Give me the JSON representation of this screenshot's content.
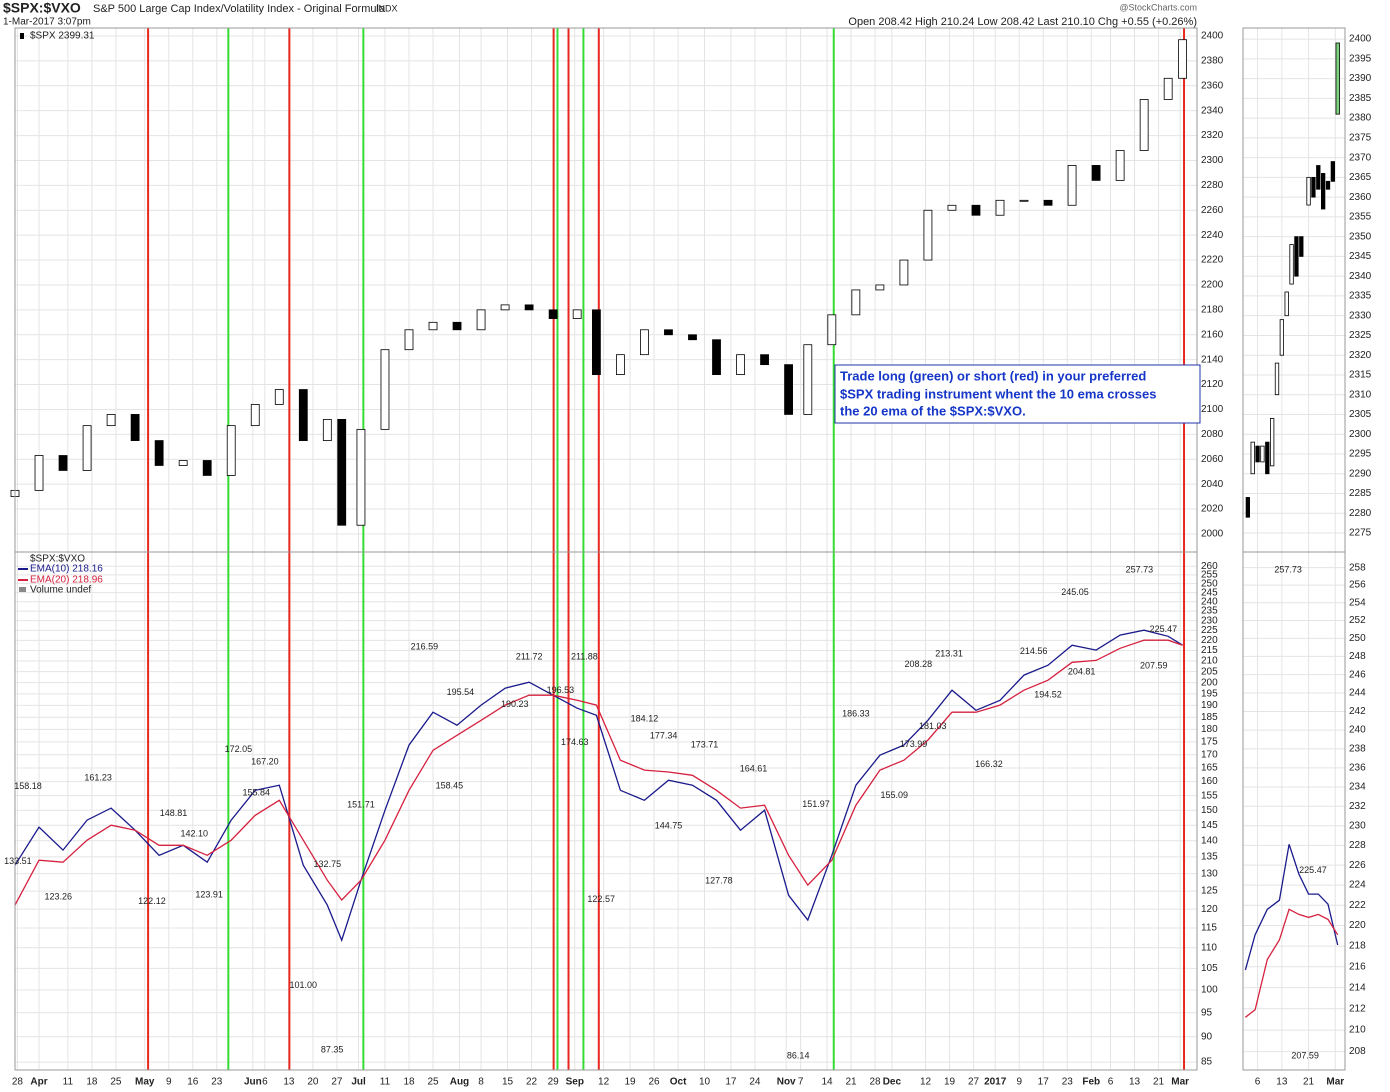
{
  "header": {
    "symbol": "$SPX:$VXO",
    "description": "S&P 500 Large Cap Index/Volatility Index - Original Formula",
    "exchange": "INDX",
    "date": "1-Mar-2017 3:07pm",
    "quote": "Open 208.42 High 210.24 Low 208.42 Last 210.10 Chg +0.55 (+0.26%)",
    "brand": "@StockCharts.com"
  },
  "chart_data": [
    {
      "type": "candlestick",
      "series_name": "$SPX 2399.31",
      "x": [
        0,
        5,
        10,
        15,
        20,
        25,
        30,
        35,
        40,
        45,
        50,
        55,
        60,
        65,
        68,
        72,
        77,
        82,
        87,
        92,
        97,
        102,
        107,
        112,
        117,
        121,
        126,
        131,
        136,
        141,
        146,
        151,
        156,
        161,
        165,
        170,
        175,
        180,
        185,
        190,
        195,
        200,
        205,
        210,
        215,
        220,
        225,
        230,
        235,
        240,
        243
      ],
      "open": [
        2030,
        2035,
        2063,
        2051,
        2087,
        2096,
        2075,
        2055,
        2059,
        2047,
        2087,
        2104,
        2116,
        2075,
        2092,
        2007,
        2084,
        2148,
        2164,
        2170,
        2164,
        2180,
        2184,
        2180,
        2173,
        2180,
        2128,
        2144,
        2164,
        2160,
        2156,
        2128,
        2144,
        2136,
        2096,
        2152,
        2176,
        2196,
        2200,
        2220,
        2260,
        2264,
        2256,
        2268,
        2268,
        2264,
        2296,
        2284,
        2308,
        2349,
        2366
      ],
      "close": [
        2035,
        2063,
        2051,
        2087,
        2096,
        2075,
        2055,
        2059,
        2047,
        2087,
        2104,
        2116,
        2075,
        2092,
        2007,
        2084,
        2148,
        2164,
        2170,
        2164,
        2180,
        2184,
        2180,
        2173,
        2180,
        2128,
        2144,
        2164,
        2160,
        2156,
        2128,
        2144,
        2136,
        2096,
        2152,
        2176,
        2196,
        2200,
        2220,
        2260,
        2264,
        2256,
        2268,
        2268,
        2264,
        2296,
        2284,
        2308,
        2349,
        2366,
        2397
      ],
      "up_color": "#ffffff",
      "down_color": "#000000",
      "xlim": [
        0,
        246
      ],
      "ylim": [
        1985.5,
        2406.4
      ],
      "yticks": [
        2000,
        2020,
        2040,
        2060,
        2080,
        2100,
        2120,
        2140,
        2160,
        2180,
        2200,
        2220,
        2240,
        2260,
        2280,
        2300,
        2320,
        2340,
        2360,
        2380,
        2400
      ],
      "signal_lines": {
        "x": [
          27.7,
          44.4,
          57.1,
          72.5,
          112.1,
          112.9,
          115.2,
          118.3,
          121.5,
          170.4,
          243.3
        ],
        "colors": [
          "#e8281e",
          "#33dd33",
          "#e8281e",
          "#33dd33",
          "#e8281e",
          "#33dd33",
          "#e8281e",
          "#33dd33",
          "#e8281e",
          "#33dd33",
          "#e8281e"
        ]
      },
      "callout": [
        "Trade long (green) or short (red) in your preferred",
        "$SPX trading instrument whent the 10 ema crosses",
        "the 20 ema of the $SPX:$VXO."
      ]
    },
    {
      "type": "line",
      "ratio_name": "$SPX:$VXO",
      "volume_label": "Volume undef",
      "x": [
        0,
        5,
        10,
        15,
        20,
        25,
        30,
        35,
        40,
        45,
        50,
        55,
        60,
        65,
        68,
        72,
        77,
        82,
        87,
        92,
        97,
        102,
        107,
        112,
        117,
        121,
        126,
        131,
        136,
        141,
        146,
        151,
        156,
        161,
        165,
        170,
        175,
        180,
        185,
        190,
        195,
        200,
        205,
        210,
        215,
        220,
        225,
        230,
        235,
        240,
        243
      ],
      "series": [
        {
          "name": "EMA(10) 218.16",
          "color": "#1a1a8c",
          "values": [
            132.5,
            144.4,
            137.1,
            146.7,
            150.7,
            143.4,
            135.5,
            138.6,
            133.4,
            146.7,
            156.9,
            158.7,
            132.5,
            121.1,
            111.9,
            128.1,
            150.0,
            173.7,
            187.1,
            181.7,
            190.1,
            197.5,
            200.2,
            194.4,
            188.8,
            185.8,
            156.9,
            153.4,
            160.5,
            158.7,
            153.4,
            143.4,
            150.0,
            123.8,
            117.1,
            135.5,
            158.7,
            169.8,
            173.7,
            183.7,
            196.6,
            187.9,
            192.2,
            203.4,
            208.0,
            217.6,
            215.2,
            222.6,
            225.1,
            222.0,
            217.6
          ]
        },
        {
          "name": "EMA(20) 218.96",
          "color": "#d6213f",
          "values": [
            121.1,
            134.0,
            133.4,
            140.2,
            145.0,
            143.4,
            138.6,
            138.6,
            135.5,
            140.2,
            148.3,
            153.4,
            140.2,
            128.1,
            122.5,
            128.1,
            140.2,
            156.9,
            171.7,
            177.6,
            183.7,
            190.1,
            194.4,
            194.4,
            192.2,
            190.1,
            167.9,
            164.2,
            163.5,
            162.3,
            156.9,
            150.7,
            151.7,
            135.5,
            126.7,
            134.0,
            151.7,
            164.2,
            167.9,
            175.7,
            187.1,
            187.1,
            190.1,
            196.6,
            201.1,
            209.4,
            210.3,
            216.1,
            220.1,
            220.1,
            217.6
          ]
        }
      ],
      "log_scale": true,
      "xlim": [
        0,
        246
      ],
      "ylim": [
        83.5,
        268.5
      ],
      "yticks": [
        85,
        90,
        95,
        100,
        105,
        110,
        115,
        120,
        125,
        130,
        135,
        140,
        145,
        150,
        155,
        160,
        165,
        170,
        175,
        180,
        185,
        190,
        195,
        200,
        205,
        210,
        215,
        220,
        225,
        230,
        235,
        240,
        245,
        250,
        255,
        260
      ],
      "xticks": [
        {
          "value": 0.5,
          "label": "28"
        },
        {
          "value": 5,
          "label": "Apr"
        },
        {
          "value": 11,
          "label": "11"
        },
        {
          "value": 16,
          "label": "18"
        },
        {
          "value": 21,
          "label": "25"
        },
        {
          "value": 27,
          "label": "May"
        },
        {
          "value": 32,
          "label": "9"
        },
        {
          "value": 37,
          "label": "16"
        },
        {
          "value": 42,
          "label": "23"
        },
        {
          "value": 49.5,
          "label": "Jun"
        },
        {
          "value": 52,
          "label": "6"
        },
        {
          "value": 57,
          "label": "13"
        },
        {
          "value": 62,
          "label": "20"
        },
        {
          "value": 67,
          "label": "27"
        },
        {
          "value": 71.5,
          "label": "Jul"
        },
        {
          "value": 77,
          "label": "11"
        },
        {
          "value": 82,
          "label": "18"
        },
        {
          "value": 87,
          "label": "25"
        },
        {
          "value": 92.5,
          "label": "Aug"
        },
        {
          "value": 97,
          "label": "8"
        },
        {
          "value": 102.5,
          "label": "15"
        },
        {
          "value": 107.5,
          "label": "22"
        },
        {
          "value": 112,
          "label": "29"
        },
        {
          "value": 116.5,
          "label": "Sep"
        },
        {
          "value": 122.5,
          "label": "12"
        },
        {
          "value": 128,
          "label": "19"
        },
        {
          "value": 133,
          "label": "26"
        },
        {
          "value": 138,
          "label": "Oct"
        },
        {
          "value": 143.5,
          "label": "10"
        },
        {
          "value": 149,
          "label": "17"
        },
        {
          "value": 154,
          "label": "24"
        },
        {
          "value": 160.5,
          "label": "Nov"
        },
        {
          "value": 163.5,
          "label": "7"
        },
        {
          "value": 169,
          "label": "14"
        },
        {
          "value": 174,
          "label": "21"
        },
        {
          "value": 179,
          "label": "28"
        },
        {
          "value": 182.5,
          "label": "Dec"
        },
        {
          "value": 189.5,
          "label": "12"
        },
        {
          "value": 194.5,
          "label": "19"
        },
        {
          "value": 199.5,
          "label": "27"
        },
        {
          "value": 204,
          "label": "2017"
        },
        {
          "value": 209,
          "label": "9"
        },
        {
          "value": 214,
          "label": "17"
        },
        {
          "value": 219,
          "label": "23"
        },
        {
          "value": 224,
          "label": "Feb"
        },
        {
          "value": 228,
          "label": "6"
        },
        {
          "value": 233,
          "label": "13"
        },
        {
          "value": 238,
          "label": "21"
        },
        {
          "value": 242.5,
          "label": "Mar"
        }
      ],
      "annotations": {
        "x": [
          2.7,
          0.6,
          9,
          17.3,
          33,
          37.3,
          28.5,
          40.4,
          46.5,
          50.2,
          52,
          65,
          60,
          66,
          72,
          85.2,
          92.7,
          90.4,
          107,
          104,
          113.5,
          118.5,
          116.5,
          122,
          131,
          135,
          136,
          143.5,
          146.5,
          153.7,
          166.7,
          163,
          175,
          183,
          187,
          191,
          188,
          194.4,
          202.7,
          212,
          215,
          220.6,
          222,
          234,
          239,
          237
        ],
        "values": [
          158.18,
          133.51,
          123.26,
          161.23,
          148.81,
          142.1,
          122.12,
          123.91,
          172.05,
          155.84,
          167.2,
          132.75,
          101,
          87.35,
          151.71,
          216.59,
          195.54,
          158.45,
          211.72,
          190.23,
          196.53,
          211.88,
          174.63,
          122.57,
          184.12,
          177.34,
          144.75,
          173.71,
          127.78,
          164.61,
          151.97,
          86.14,
          186.33,
          155.09,
          173.99,
          181.03,
          208.28,
          213.31,
          166.32,
          214.56,
          194.52,
          245.05,
          204.81,
          257.73,
          225.47,
          207.59
        ],
        "value_labels": [
          "158.18",
          "133.51",
          "123.26",
          "161.23",
          "148.81",
          "142.10",
          "122.12",
          "123.91",
          "172.05",
          "155.84",
          "167.20",
          "132.75",
          "101.00",
          "87.35",
          "151.71",
          "216.59",
          "195.54",
          "158.45",
          "211.72",
          "190.23",
          "196.53",
          "211.88",
          "174.63",
          "122.57",
          "184.12",
          "177.34",
          "144.75",
          "173.71",
          "127.78",
          "164.61",
          "151.97",
          "86.14",
          "186.33",
          "155.09",
          "173.99",
          "181.03",
          "208.28",
          "213.31",
          "166.32",
          "214.56",
          "194.52",
          "245.05",
          "204.81",
          "257.73",
          "225.47",
          "207.59"
        ]
      }
    },
    {
      "type": "candlestick",
      "x": [
        1,
        2,
        3,
        4,
        5,
        6,
        7,
        8,
        9,
        10,
        11,
        12,
        13.5,
        14.5,
        15.5,
        16.5,
        17.5,
        18.5,
        19.5
      ],
      "open": [
        2284,
        2290,
        2297,
        2293,
        2298,
        2292,
        2310,
        2320,
        2330,
        2338,
        2350,
        2350,
        2358,
        2365,
        2368,
        2366,
        2364,
        2369,
        2381
      ],
      "close": [
        2279,
        2298,
        2293,
        2297,
        2290,
        2304,
        2318,
        2329,
        2336,
        2348,
        2340,
        2345,
        2365,
        2360,
        2362,
        2357,
        2362,
        2364,
        2399
      ],
      "up_color": "#ffffff",
      "down_color": "#000000",
      "last_color": "#7fd37f",
      "xlim": [
        0,
        21
      ],
      "ylim": [
        2270.2,
        2402.8
      ],
      "yticks": [
        2275,
        2280,
        2285,
        2290,
        2295,
        2300,
        2305,
        2310,
        2315,
        2320,
        2325,
        2330,
        2335,
        2340,
        2345,
        2350,
        2355,
        2360,
        2365,
        2370,
        2375,
        2380,
        2385,
        2390,
        2395,
        2400
      ]
    },
    {
      "type": "line",
      "x": [
        0.5,
        2.5,
        5,
        7.5,
        9.5,
        11.5,
        13.5,
        15.5,
        17.5,
        19.5
      ],
      "series": [
        {
          "color": "#1a1a8c",
          "values": [
            215.7,
            219.1,
            221.6,
            222.5,
            228.1,
            225.1,
            223.1,
            223.1,
            222.1,
            218.1
          ]
        },
        {
          "color": "#d6213f",
          "values": [
            211.2,
            211.9,
            216.7,
            218.6,
            221.6,
            221.1,
            220.8,
            221.1,
            220.6,
            219.1
          ]
        }
      ],
      "log_scale": true,
      "xlim": [
        0,
        21
      ],
      "ylim": [
        206.3,
        259.8
      ],
      "yticks": [
        208,
        210,
        212,
        214,
        216,
        218,
        220,
        222,
        224,
        226,
        228,
        230,
        232,
        234,
        236,
        238,
        240,
        242,
        244,
        246,
        248,
        250,
        252,
        254,
        256,
        258
      ],
      "xticks": [
        {
          "value": 3,
          "label": "6"
        },
        {
          "value": 8,
          "label": "13"
        },
        {
          "value": 13.5,
          "label": "21"
        },
        {
          "value": 19,
          "label": "Mar"
        }
      ],
      "annotations": {
        "x": [
          9.3,
          14.4,
          12.8
        ],
        "values": [
          257.73,
          225.47,
          207.59
        ],
        "value_labels": [
          "257.73",
          "225.47",
          "207.59"
        ]
      }
    }
  ]
}
